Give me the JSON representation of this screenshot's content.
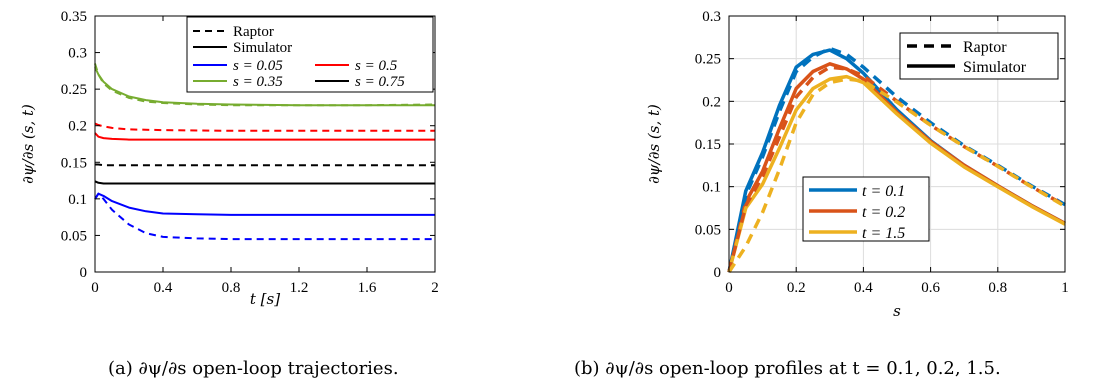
{
  "captions": {
    "a": "(a) ∂ψ/∂s open-loop trajectories.",
    "b": "(b) ∂ψ/∂s open-loop profiles at t = 0.1, 0.2, 1.5."
  },
  "chart_data": [
    {
      "type": "line",
      "xlabel": "t [s]",
      "ylabel": "∂ψ/∂s (s, t)",
      "xlim": [
        0,
        2
      ],
      "ylim": [
        0,
        0.35
      ],
      "x_ticks": [
        "0",
        "0.4",
        "0.8",
        "1.2",
        "1.6",
        "2"
      ],
      "y_ticks": [
        "0",
        "0.05",
        "0.1",
        "0.15",
        "0.2",
        "0.25",
        "0.3",
        "0.35"
      ],
      "legend_position": "top-right",
      "style_legend": [
        {
          "label": "Raptor",
          "dash": "dashed"
        },
        {
          "label": "Simulator",
          "dash": "solid"
        }
      ],
      "series": [
        {
          "name": "s = 0.05",
          "color": "#0000ff",
          "source": "Simulator",
          "x": [
            0,
            0.02,
            0.05,
            0.1,
            0.2,
            0.3,
            0.4,
            0.6,
            0.8,
            1.2,
            1.6,
            2.0
          ],
          "y": [
            0.1,
            0.107,
            0.104,
            0.097,
            0.088,
            0.083,
            0.08,
            0.079,
            0.078,
            0.078,
            0.078,
            0.078
          ]
        },
        {
          "name": "s = 0.05",
          "color": "#0000ff",
          "source": "Raptor",
          "x": [
            0,
            0.02,
            0.05,
            0.1,
            0.2,
            0.3,
            0.4,
            0.6,
            0.8,
            1.2,
            1.6,
            2.0
          ],
          "y": [
            0.1,
            0.107,
            0.1,
            0.085,
            0.065,
            0.053,
            0.048,
            0.046,
            0.045,
            0.045,
            0.045,
            0.045
          ]
        },
        {
          "name": "s = 0.5",
          "color": "#ff0000",
          "source": "Simulator",
          "x": [
            0,
            0.02,
            0.05,
            0.1,
            0.2,
            0.4,
            0.8,
            1.2,
            1.6,
            2.0
          ],
          "y": [
            0.19,
            0.185,
            0.183,
            0.182,
            0.181,
            0.181,
            0.181,
            0.181,
            0.181,
            0.181
          ]
        },
        {
          "name": "s = 0.5",
          "color": "#ff0000",
          "source": "Raptor",
          "x": [
            0,
            0.02,
            0.05,
            0.1,
            0.2,
            0.4,
            0.8,
            1.2,
            1.6,
            2.0
          ],
          "y": [
            0.203,
            0.201,
            0.199,
            0.197,
            0.195,
            0.194,
            0.193,
            0.193,
            0.193,
            0.193
          ]
        },
        {
          "name": "s = 0.35",
          "color": "#77ac30",
          "source": "Simulator",
          "x": [
            0,
            0.02,
            0.05,
            0.1,
            0.2,
            0.3,
            0.4,
            0.6,
            0.8,
            1.2,
            1.6,
            2.0
          ],
          "y": [
            0.28,
            0.27,
            0.26,
            0.25,
            0.24,
            0.235,
            0.232,
            0.23,
            0.229,
            0.228,
            0.228,
            0.228
          ]
        },
        {
          "name": "s = 0.35",
          "color": "#77ac30",
          "source": "Raptor",
          "x": [
            0,
            0.02,
            0.05,
            0.1,
            0.2,
            0.3,
            0.4,
            0.6,
            0.8,
            1.2,
            1.6,
            2.0
          ],
          "y": [
            0.285,
            0.27,
            0.258,
            0.248,
            0.238,
            0.233,
            0.231,
            0.229,
            0.228,
            0.228,
            0.228,
            0.229
          ]
        },
        {
          "name": "s = 0.75",
          "color": "#000000",
          "source": "Simulator",
          "x": [
            0,
            0.02,
            0.05,
            0.1,
            0.2,
            0.4,
            0.8,
            1.2,
            1.6,
            2.0
          ],
          "y": [
            0.124,
            0.122,
            0.121,
            0.121,
            0.121,
            0.121,
            0.121,
            0.121,
            0.121,
            0.121
          ]
        },
        {
          "name": "s = 0.75",
          "color": "#000000",
          "source": "Raptor",
          "x": [
            0,
            0.02,
            0.05,
            0.1,
            0.2,
            0.4,
            0.8,
            1.2,
            1.6,
            2.0
          ],
          "y": [
            0.147,
            0.147,
            0.146,
            0.146,
            0.146,
            0.146,
            0.146,
            0.146,
            0.146,
            0.146
          ]
        }
      ]
    },
    {
      "type": "line",
      "xlabel": "s",
      "ylabel": "∂ψ/∂s (s, t)",
      "xlim": [
        0,
        1
      ],
      "ylim": [
        0,
        0.3
      ],
      "x_ticks": [
        "0",
        "0.2",
        "0.4",
        "0.6",
        "0.8",
        "1"
      ],
      "y_ticks": [
        "0",
        "0.05",
        "0.1",
        "0.15",
        "0.2",
        "0.25",
        "0.3"
      ],
      "grid": true,
      "legend_position": "top-right (style), lower-left (time)",
      "style_legend": [
        {
          "label": "Raptor",
          "dash": "dashed"
        },
        {
          "label": "Simulator",
          "dash": "solid"
        }
      ],
      "series": [
        {
          "name": "t = 0.1",
          "color": "#0072bd",
          "source": "Simulator",
          "x": [
            0,
            0.05,
            0.1,
            0.15,
            0.2,
            0.25,
            0.3,
            0.35,
            0.4,
            0.5,
            0.6,
            0.7,
            0.8,
            0.9,
            1.0
          ],
          "y": [
            0,
            0.095,
            0.14,
            0.195,
            0.24,
            0.255,
            0.26,
            0.25,
            0.233,
            0.19,
            0.154,
            0.125,
            0.101,
            0.078,
            0.057
          ]
        },
        {
          "name": "t = 0.1",
          "color": "#0072bd",
          "source": "Raptor",
          "x": [
            0,
            0.05,
            0.1,
            0.15,
            0.2,
            0.25,
            0.3,
            0.35,
            0.4,
            0.5,
            0.6,
            0.7,
            0.8,
            0.9,
            1.0
          ],
          "y": [
            0,
            0.09,
            0.135,
            0.188,
            0.235,
            0.252,
            0.262,
            0.255,
            0.24,
            0.205,
            0.175,
            0.148,
            0.125,
            0.101,
            0.079
          ]
        },
        {
          "name": "t = 0.2",
          "color": "#d95319",
          "source": "Simulator",
          "x": [
            0,
            0.05,
            0.1,
            0.15,
            0.2,
            0.25,
            0.3,
            0.35,
            0.4,
            0.5,
            0.6,
            0.7,
            0.8,
            0.9,
            1.0
          ],
          "y": [
            0,
            0.082,
            0.118,
            0.168,
            0.215,
            0.235,
            0.244,
            0.238,
            0.226,
            0.187,
            0.153,
            0.125,
            0.101,
            0.078,
            0.057
          ]
        },
        {
          "name": "t = 0.2",
          "color": "#d95319",
          "source": "Raptor",
          "x": [
            0,
            0.05,
            0.1,
            0.15,
            0.2,
            0.25,
            0.3,
            0.35,
            0.4,
            0.5,
            0.6,
            0.7,
            0.8,
            0.9,
            1.0
          ],
          "y": [
            0,
            0.078,
            0.112,
            0.158,
            0.205,
            0.228,
            0.24,
            0.238,
            0.23,
            0.2,
            0.172,
            0.147,
            0.124,
            0.1,
            0.078
          ]
        },
        {
          "name": "t = 1.5",
          "color": "#edb120",
          "source": "Simulator",
          "x": [
            0,
            0.05,
            0.1,
            0.15,
            0.2,
            0.25,
            0.3,
            0.35,
            0.4,
            0.5,
            0.6,
            0.7,
            0.8,
            0.9,
            1.0
          ],
          "y": [
            0,
            0.075,
            0.103,
            0.145,
            0.19,
            0.215,
            0.226,
            0.229,
            0.222,
            0.185,
            0.151,
            0.123,
            0.1,
            0.077,
            0.056
          ]
        },
        {
          "name": "t = 1.5",
          "color": "#edb120",
          "source": "Raptor",
          "x": [
            0,
            0.05,
            0.1,
            0.15,
            0.2,
            0.25,
            0.3,
            0.35,
            0.4,
            0.5,
            0.6,
            0.7,
            0.8,
            0.9,
            1.0
          ],
          "y": [
            0,
            0.03,
            0.07,
            0.12,
            0.175,
            0.208,
            0.222,
            0.226,
            0.224,
            0.199,
            0.172,
            0.147,
            0.124,
            0.1,
            0.077
          ]
        }
      ]
    }
  ]
}
